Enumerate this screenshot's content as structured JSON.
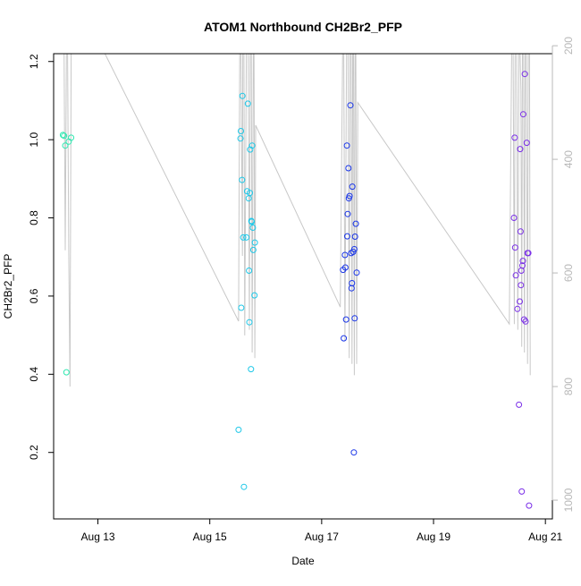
{
  "chart_data": {
    "type": "scatter",
    "title": "ATOM1 Northbound CH2Br2_PFP",
    "xlabel": "Date",
    "ylabel": "CH2Br2_PFP",
    "xlim": [
      "2016-08-12T05:00",
      "2016-08-21T03:00"
    ],
    "ylim": [
      0.03,
      1.22
    ],
    "y_ticks": [
      0.2,
      0.4,
      0.6,
      0.8,
      1.0,
      1.2
    ],
    "y_tick_labels": [
      "0.2",
      "0.4",
      "0.6",
      "0.8",
      "1.0",
      "1.2"
    ],
    "x_ticks": [
      "2016-08-13",
      "2016-08-15",
      "2016-08-17",
      "2016-08-19",
      "2016-08-21"
    ],
    "x_tick_labels": [
      "Aug 13",
      "Aug 15",
      "Aug 17",
      "Aug 19",
      "Aug 21"
    ],
    "y2_ticks": [
      200,
      400,
      600,
      800,
      1000
    ],
    "y2_tick_labels": [
      "200",
      "400",
      "600",
      "800",
      "1000"
    ],
    "y2lim": [
      1033,
      214
    ],
    "grid": false,
    "colors": {
      "points_early": "#2EE8B0",
      "points_aug15": "#1EC8E8",
      "points_aug17": "#1A36E8",
      "points_aug20": "#7A2EE8",
      "secondary_line": "#c8c8c8",
      "secondary_axis": "#b8b8b8",
      "axis": "#000000"
    },
    "points": [
      {
        "date": "2016-08-12T09:00",
        "value": 1.012,
        "color": "#2EE8B0"
      },
      {
        "date": "2016-08-12T09:30",
        "value": 1.01,
        "color": "#2EE8B0"
      },
      {
        "date": "2016-08-12T10:00",
        "value": 0.985,
        "color": "#2EE8B0"
      },
      {
        "date": "2016-08-12T10:30",
        "value": 0.405,
        "color": "#2EE8B0"
      },
      {
        "date": "2016-08-12T11:30",
        "value": 0.995,
        "color": "#2EE8B0"
      },
      {
        "date": "2016-08-12T12:30",
        "value": 1.005,
        "color": "#2EE8B0"
      },
      {
        "date": "2016-08-15T12:20",
        "value": 0.258,
        "color": "#1EC8E8"
      },
      {
        "date": "2016-08-15T13:10",
        "value": 1.003,
        "color": "#1EC8E8"
      },
      {
        "date": "2016-08-15T13:20",
        "value": 1.022,
        "color": "#1EC8E8"
      },
      {
        "date": "2016-08-15T13:30",
        "value": 0.57,
        "color": "#1EC8E8"
      },
      {
        "date": "2016-08-15T13:50",
        "value": 0.897,
        "color": "#1EC8E8"
      },
      {
        "date": "2016-08-15T14:00",
        "value": 1.112,
        "color": "#1EC8E8"
      },
      {
        "date": "2016-08-15T14:20",
        "value": 0.75,
        "color": "#1EC8E8"
      },
      {
        "date": "2016-08-15T14:40",
        "value": 0.112,
        "color": "#1EC8E8"
      },
      {
        "date": "2016-08-15T15:40",
        "value": 0.75,
        "color": "#1EC8E8"
      },
      {
        "date": "2016-08-15T16:00",
        "value": 0.868,
        "color": "#1EC8E8"
      },
      {
        "date": "2016-08-15T16:20",
        "value": 1.092,
        "color": "#1EC8E8"
      },
      {
        "date": "2016-08-15T16:40",
        "value": 0.85,
        "color": "#1EC8E8"
      },
      {
        "date": "2016-08-15T16:50",
        "value": 0.665,
        "color": "#1EC8E8"
      },
      {
        "date": "2016-08-15T17:00",
        "value": 0.533,
        "color": "#1EC8E8"
      },
      {
        "date": "2016-08-15T17:10",
        "value": 0.864,
        "color": "#1EC8E8"
      },
      {
        "date": "2016-08-15T17:20",
        "value": 0.975,
        "color": "#1EC8E8"
      },
      {
        "date": "2016-08-15T17:40",
        "value": 0.413,
        "color": "#1EC8E8"
      },
      {
        "date": "2016-08-15T17:50",
        "value": 0.792,
        "color": "#1EC8E8"
      },
      {
        "date": "2016-08-15T18:00",
        "value": 0.79,
        "color": "#1EC8E8"
      },
      {
        "date": "2016-08-15T18:10",
        "value": 0.985,
        "color": "#1EC8E8"
      },
      {
        "date": "2016-08-15T18:30",
        "value": 0.775,
        "color": "#1EC8E8"
      },
      {
        "date": "2016-08-15T18:40",
        "value": 0.718,
        "color": "#1EC8E8"
      },
      {
        "date": "2016-08-15T19:10",
        "value": 0.602,
        "color": "#1EC8E8"
      },
      {
        "date": "2016-08-15T19:20",
        "value": 0.737,
        "color": "#1EC8E8"
      },
      {
        "date": "2016-08-17T09:10",
        "value": 0.667,
        "color": "#1A36E8"
      },
      {
        "date": "2016-08-17T09:30",
        "value": 0.492,
        "color": "#1A36E8"
      },
      {
        "date": "2016-08-17T10:00",
        "value": 0.705,
        "color": "#1A36E8"
      },
      {
        "date": "2016-08-17T10:10",
        "value": 0.673,
        "color": "#1A36E8"
      },
      {
        "date": "2016-08-17T10:30",
        "value": 0.54,
        "color": "#1A36E8"
      },
      {
        "date": "2016-08-17T10:50",
        "value": 0.985,
        "color": "#1A36E8"
      },
      {
        "date": "2016-08-17T11:00",
        "value": 0.753,
        "color": "#1A36E8"
      },
      {
        "date": "2016-08-17T11:10",
        "value": 0.81,
        "color": "#1A36E8"
      },
      {
        "date": "2016-08-17T11:30",
        "value": 0.927,
        "color": "#1A36E8"
      },
      {
        "date": "2016-08-17T11:40",
        "value": 0.85,
        "color": "#1A36E8"
      },
      {
        "date": "2016-08-17T12:00",
        "value": 0.856,
        "color": "#1A36E8"
      },
      {
        "date": "2016-08-17T12:20",
        "value": 1.088,
        "color": "#1A36E8"
      },
      {
        "date": "2016-08-17T12:40",
        "value": 0.71,
        "color": "#1A36E8"
      },
      {
        "date": "2016-08-17T12:50",
        "value": 0.62,
        "color": "#1A36E8"
      },
      {
        "date": "2016-08-17T13:00",
        "value": 0.633,
        "color": "#1A36E8"
      },
      {
        "date": "2016-08-17T13:10",
        "value": 0.88,
        "color": "#1A36E8"
      },
      {
        "date": "2016-08-17T13:30",
        "value": 0.713,
        "color": "#1A36E8"
      },
      {
        "date": "2016-08-17T13:50",
        "value": 0.2,
        "color": "#1A36E8"
      },
      {
        "date": "2016-08-17T14:00",
        "value": 0.72,
        "color": "#1A36E8"
      },
      {
        "date": "2016-08-17T14:10",
        "value": 0.543,
        "color": "#1A36E8"
      },
      {
        "date": "2016-08-17T14:20",
        "value": 0.752,
        "color": "#1A36E8"
      },
      {
        "date": "2016-08-17T14:40",
        "value": 0.785,
        "color": "#1A36E8"
      },
      {
        "date": "2016-08-17T15:00",
        "value": 0.66,
        "color": "#1A36E8"
      },
      {
        "date": "2016-08-20T10:30",
        "value": 0.8,
        "color": "#7A2EE8"
      },
      {
        "date": "2016-08-20T10:50",
        "value": 1.005,
        "color": "#7A2EE8"
      },
      {
        "date": "2016-08-20T11:00",
        "value": 0.724,
        "color": "#7A2EE8"
      },
      {
        "date": "2016-08-20T11:20",
        "value": 0.653,
        "color": "#7A2EE8"
      },
      {
        "date": "2016-08-20T12:00",
        "value": 0.567,
        "color": "#7A2EE8"
      },
      {
        "date": "2016-08-20T12:40",
        "value": 0.322,
        "color": "#7A2EE8"
      },
      {
        "date": "2016-08-20T13:00",
        "value": 0.586,
        "color": "#7A2EE8"
      },
      {
        "date": "2016-08-20T13:10",
        "value": 0.976,
        "color": "#7A2EE8"
      },
      {
        "date": "2016-08-20T13:20",
        "value": 0.765,
        "color": "#7A2EE8"
      },
      {
        "date": "2016-08-20T13:30",
        "value": 0.628,
        "color": "#7A2EE8"
      },
      {
        "date": "2016-08-20T13:40",
        "value": 0.665,
        "color": "#7A2EE8"
      },
      {
        "date": "2016-08-20T13:50",
        "value": 0.1,
        "color": "#7A2EE8"
      },
      {
        "date": "2016-08-20T14:10",
        "value": 0.678,
        "color": "#7A2EE8"
      },
      {
        "date": "2016-08-20T14:20",
        "value": 0.69,
        "color": "#7A2EE8"
      },
      {
        "date": "2016-08-20T14:30",
        "value": 1.065,
        "color": "#7A2EE8"
      },
      {
        "date": "2016-08-20T14:50",
        "value": 0.54,
        "color": "#7A2EE8"
      },
      {
        "date": "2016-08-20T15:10",
        "value": 1.168,
        "color": "#7A2EE8"
      },
      {
        "date": "2016-08-20T15:30",
        "value": 0.535,
        "color": "#7A2EE8"
      },
      {
        "date": "2016-08-20T16:00",
        "value": 0.992,
        "color": "#7A2EE8"
      },
      {
        "date": "2016-08-20T16:20",
        "value": 0.71,
        "color": "#7A2EE8"
      },
      {
        "date": "2016-08-20T16:40",
        "value": 0.71,
        "color": "#7A2EE8"
      },
      {
        "date": "2016-08-20T17:00",
        "value": 0.064,
        "color": "#7A2EE8"
      }
    ],
    "secondary_series": {
      "values": [
        [
          "2016-08-12T08:30",
          214
        ],
        [
          "2016-08-12T09:30",
          214
        ],
        [
          "2016-08-12T10:00",
          560
        ],
        [
          "2016-08-12T10:30",
          214
        ],
        [
          "2016-08-12T11:00",
          214
        ],
        [
          "2016-08-12T11:30",
          560
        ],
        [
          "2016-08-12T12:00",
          800
        ],
        [
          "2016-08-12T12:30",
          214
        ],
        [
          "2016-08-12T13:00",
          214
        ],
        [
          "2016-08-12T14:00",
          214
        ],
        [
          "2016-08-13T03:00",
          214
        ],
        [
          "2016-08-15T12:20",
          685
        ],
        [
          "2016-08-15T12:50",
          214
        ],
        [
          "2016-08-15T13:20",
          214
        ],
        [
          "2016-08-15T14:00",
          570
        ],
        [
          "2016-08-15T14:10",
          214
        ],
        [
          "2016-08-15T14:40",
          214
        ],
        [
          "2016-08-15T15:00",
          710
        ],
        [
          "2016-08-15T15:40",
          214
        ],
        [
          "2016-08-15T16:30",
          214
        ],
        [
          "2016-08-15T17:00",
          700
        ],
        [
          "2016-08-15T17:20",
          214
        ],
        [
          "2016-08-15T17:50",
          214
        ],
        [
          "2016-08-15T18:10",
          740
        ],
        [
          "2016-08-15T18:40",
          214
        ],
        [
          "2016-08-15T19:00",
          214
        ],
        [
          "2016-08-15T19:20",
          750
        ],
        [
          "2016-08-15T19:40",
          340
        ],
        [
          "2016-08-17T08:00",
          660
        ],
        [
          "2016-08-17T09:00",
          214
        ],
        [
          "2016-08-17T09:30",
          214
        ],
        [
          "2016-08-17T10:00",
          720
        ],
        [
          "2016-08-17T10:40",
          214
        ],
        [
          "2016-08-17T11:20",
          214
        ],
        [
          "2016-08-17T11:50",
          750
        ],
        [
          "2016-08-17T12:10",
          214
        ],
        [
          "2016-08-17T12:40",
          214
        ],
        [
          "2016-08-17T13:00",
          760
        ],
        [
          "2016-08-17T13:20",
          214
        ],
        [
          "2016-08-17T13:40",
          214
        ],
        [
          "2016-08-17T14:00",
          780
        ],
        [
          "2016-08-17T14:20",
          214
        ],
        [
          "2016-08-17T14:40",
          214
        ],
        [
          "2016-08-17T15:00",
          760
        ],
        [
          "2016-08-17T15:30",
          300
        ],
        [
          "2016-08-20T08:30",
          690
        ],
        [
          "2016-08-20T09:30",
          214
        ],
        [
          "2016-08-20T10:10",
          214
        ],
        [
          "2016-08-20T10:40",
          690
        ],
        [
          "2016-08-20T11:00",
          214
        ],
        [
          "2016-08-20T11:40",
          214
        ],
        [
          "2016-08-20T12:10",
          700
        ],
        [
          "2016-08-20T12:40",
          214
        ],
        [
          "2016-08-20T13:10",
          214
        ],
        [
          "2016-08-20T13:30",
          280
        ],
        [
          "2016-08-20T13:50",
          730
        ],
        [
          "2016-08-20T14:10",
          214
        ],
        [
          "2016-08-20T14:40",
          214
        ],
        [
          "2016-08-20T15:00",
          740
        ],
        [
          "2016-08-20T15:20",
          214
        ],
        [
          "2016-08-20T15:50",
          214
        ],
        [
          "2016-08-20T16:20",
          760
        ],
        [
          "2016-08-20T16:40",
          214
        ],
        [
          "2016-08-20T17:10",
          214
        ],
        [
          "2016-08-20T17:30",
          780
        ]
      ]
    }
  }
}
